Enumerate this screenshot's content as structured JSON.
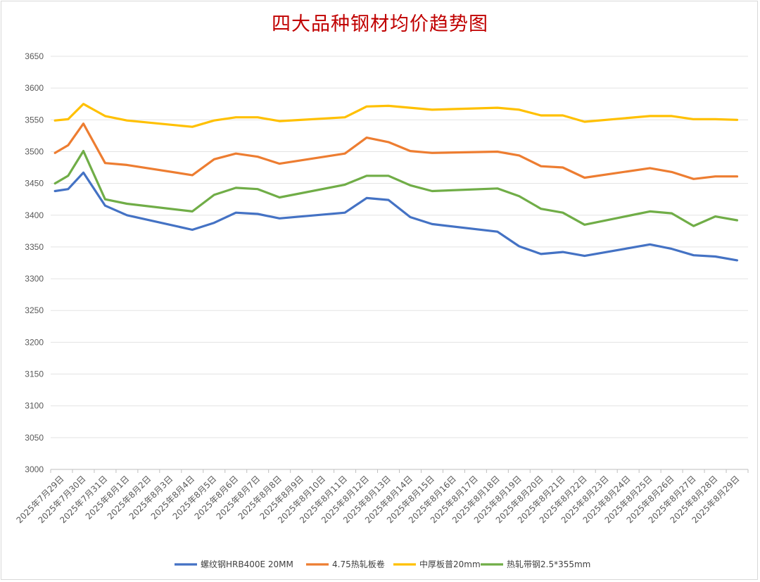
{
  "chart_data": {
    "type": "line",
    "title": "四大品种钢材均价趋势图",
    "ylim": [
      3000,
      3650
    ],
    "ystep": 50,
    "grid": true,
    "legend_position": "bottom",
    "x": [
      "2025年7月29日",
      "2025年7月30日",
      "2025年7月31日",
      "2025年8月1日",
      "2025年8月2日",
      "2025年8月3日",
      "2025年8月4日",
      "2025年8月5日",
      "2025年8月6日",
      "2025年8月7日",
      "2025年8月8日",
      "2025年8月9日",
      "2025年8月10日",
      "2025年8月11日",
      "2025年8月12日",
      "2025年8月13日",
      "2025年8月14日",
      "2025年8月15日",
      "2025年8月16日",
      "2025年8月17日",
      "2025年8月18日",
      "2025年8月19日",
      "2025年8月20日",
      "2025年8月21日",
      "2025年8月22日",
      "2025年8月23日",
      "2025年8月24日",
      "2025年8月25日",
      "2025年8月26日",
      "2025年8月27日",
      "2025年8月28日",
      "2025年8月29日"
    ],
    "series": [
      {
        "name": "螺纹钢HRB400E 20MM",
        "color": "#4472c4",
        "points": [
          [
            "2025年7月29日",
            3438
          ],
          [
            "2025年7月29日",
            3441
          ],
          [
            "2025年7月30日",
            3467
          ],
          [
            "2025年7月31日",
            3415
          ],
          [
            "2025年8月1日",
            3400
          ],
          [
            "2025年8月4日",
            3377
          ],
          [
            "2025年8月5日",
            3388
          ],
          [
            "2025年8月6日",
            3404
          ],
          [
            "2025年8月7日",
            3402
          ],
          [
            "2025年8月8日",
            3395
          ],
          [
            "2025年8月11日",
            3404
          ],
          [
            "2025年8月12日",
            3427
          ],
          [
            "2025年8月13日",
            3424
          ],
          [
            "2025年8月14日",
            3397
          ],
          [
            "2025年8月15日",
            3386
          ],
          [
            "2025年8月18日",
            3374
          ],
          [
            "2025年8月19日",
            3351
          ],
          [
            "2025年8月20日",
            3339
          ],
          [
            "2025年8月21日",
            3342
          ],
          [
            "2025年8月22日",
            3336
          ],
          [
            "2025年8月25日",
            3354
          ],
          [
            "2025年8月26日",
            3347
          ],
          [
            "2025年8月27日",
            3337
          ],
          [
            "2025年8月28日",
            3335
          ],
          [
            "2025年8月29日",
            3329
          ]
        ]
      },
      {
        "name": "4.75热轧板卷",
        "color": "#ed7d31",
        "points": [
          [
            "2025年7月29日",
            3498
          ],
          [
            "2025年7月29日",
            3510
          ],
          [
            "2025年7月30日",
            3544
          ],
          [
            "2025年7月31日",
            3482
          ],
          [
            "2025年8月1日",
            3479
          ],
          [
            "2025年8月4日",
            3463
          ],
          [
            "2025年8月5日",
            3488
          ],
          [
            "2025年8月6日",
            3497
          ],
          [
            "2025年8月7日",
            3492
          ],
          [
            "2025年8月8日",
            3481
          ],
          [
            "2025年8月11日",
            3497
          ],
          [
            "2025年8月12日",
            3522
          ],
          [
            "2025年8月13日",
            3515
          ],
          [
            "2025年8月14日",
            3501
          ],
          [
            "2025年8月15日",
            3498
          ],
          [
            "2025年8月18日",
            3500
          ],
          [
            "2025年8月19日",
            3494
          ],
          [
            "2025年8月20日",
            3477
          ],
          [
            "2025年8月21日",
            3475
          ],
          [
            "2025年8月22日",
            3459
          ],
          [
            "2025年8月25日",
            3474
          ],
          [
            "2025年8月26日",
            3468
          ],
          [
            "2025年8月27日",
            3457
          ],
          [
            "2025年8月28日",
            3461
          ],
          [
            "2025年8月29日",
            3461
          ]
        ]
      },
      {
        "name": "中厚板普20mm",
        "color": "#ffc000",
        "points": [
          [
            "2025年7月29日",
            3549
          ],
          [
            "2025年7月29日",
            3551
          ],
          [
            "2025年7月30日",
            3575
          ],
          [
            "2025年7月31日",
            3556
          ],
          [
            "2025年8月1日",
            3549
          ],
          [
            "2025年8月4日",
            3539
          ],
          [
            "2025年8月5日",
            3549
          ],
          [
            "2025年8月6日",
            3554
          ],
          [
            "2025年8月7日",
            3554
          ],
          [
            "2025年8月8日",
            3548
          ],
          [
            "2025年8月11日",
            3554
          ],
          [
            "2025年8月12日",
            3571
          ],
          [
            "2025年8月13日",
            3572
          ],
          [
            "2025年8月14日",
            3569
          ],
          [
            "2025年8月15日",
            3566
          ],
          [
            "2025年8月18日",
            3569
          ],
          [
            "2025年8月19日",
            3566
          ],
          [
            "2025年8月20日",
            3557
          ],
          [
            "2025年8月21日",
            3557
          ],
          [
            "2025年8月22日",
            3547
          ],
          [
            "2025年8月25日",
            3556
          ],
          [
            "2025年8月26日",
            3556
          ],
          [
            "2025年8月27日",
            3551
          ],
          [
            "2025年8月28日",
            3551
          ],
          [
            "2025年8月29日",
            3550
          ]
        ]
      },
      {
        "name": "热轧带钢2.5*355mm",
        "color": "#70ad47",
        "points": [
          [
            "2025年7月29日",
            3450
          ],
          [
            "2025年7月29日",
            3462
          ],
          [
            "2025年7月30日",
            3501
          ],
          [
            "2025年7月31日",
            3425
          ],
          [
            "2025年8月1日",
            3418
          ],
          [
            "2025年8月4日",
            3406
          ],
          [
            "2025年8月5日",
            3432
          ],
          [
            "2025年8月6日",
            3443
          ],
          [
            "2025年8月7日",
            3441
          ],
          [
            "2025年8月8日",
            3428
          ],
          [
            "2025年8月11日",
            3448
          ],
          [
            "2025年8月12日",
            3462
          ],
          [
            "2025年8月13日",
            3462
          ],
          [
            "2025年8月14日",
            3447
          ],
          [
            "2025年8月15日",
            3438
          ],
          [
            "2025年8月18日",
            3442
          ],
          [
            "2025年8月19日",
            3430
          ],
          [
            "2025年8月20日",
            3410
          ],
          [
            "2025年8月21日",
            3404
          ],
          [
            "2025年8月22日",
            3385
          ],
          [
            "2025年8月25日",
            3406
          ],
          [
            "2025年8月26日",
            3403
          ],
          [
            "2025年8月27日",
            3383
          ],
          [
            "2025年8月28日",
            3398
          ],
          [
            "2025年8月29日",
            3392
          ]
        ]
      }
    ]
  }
}
